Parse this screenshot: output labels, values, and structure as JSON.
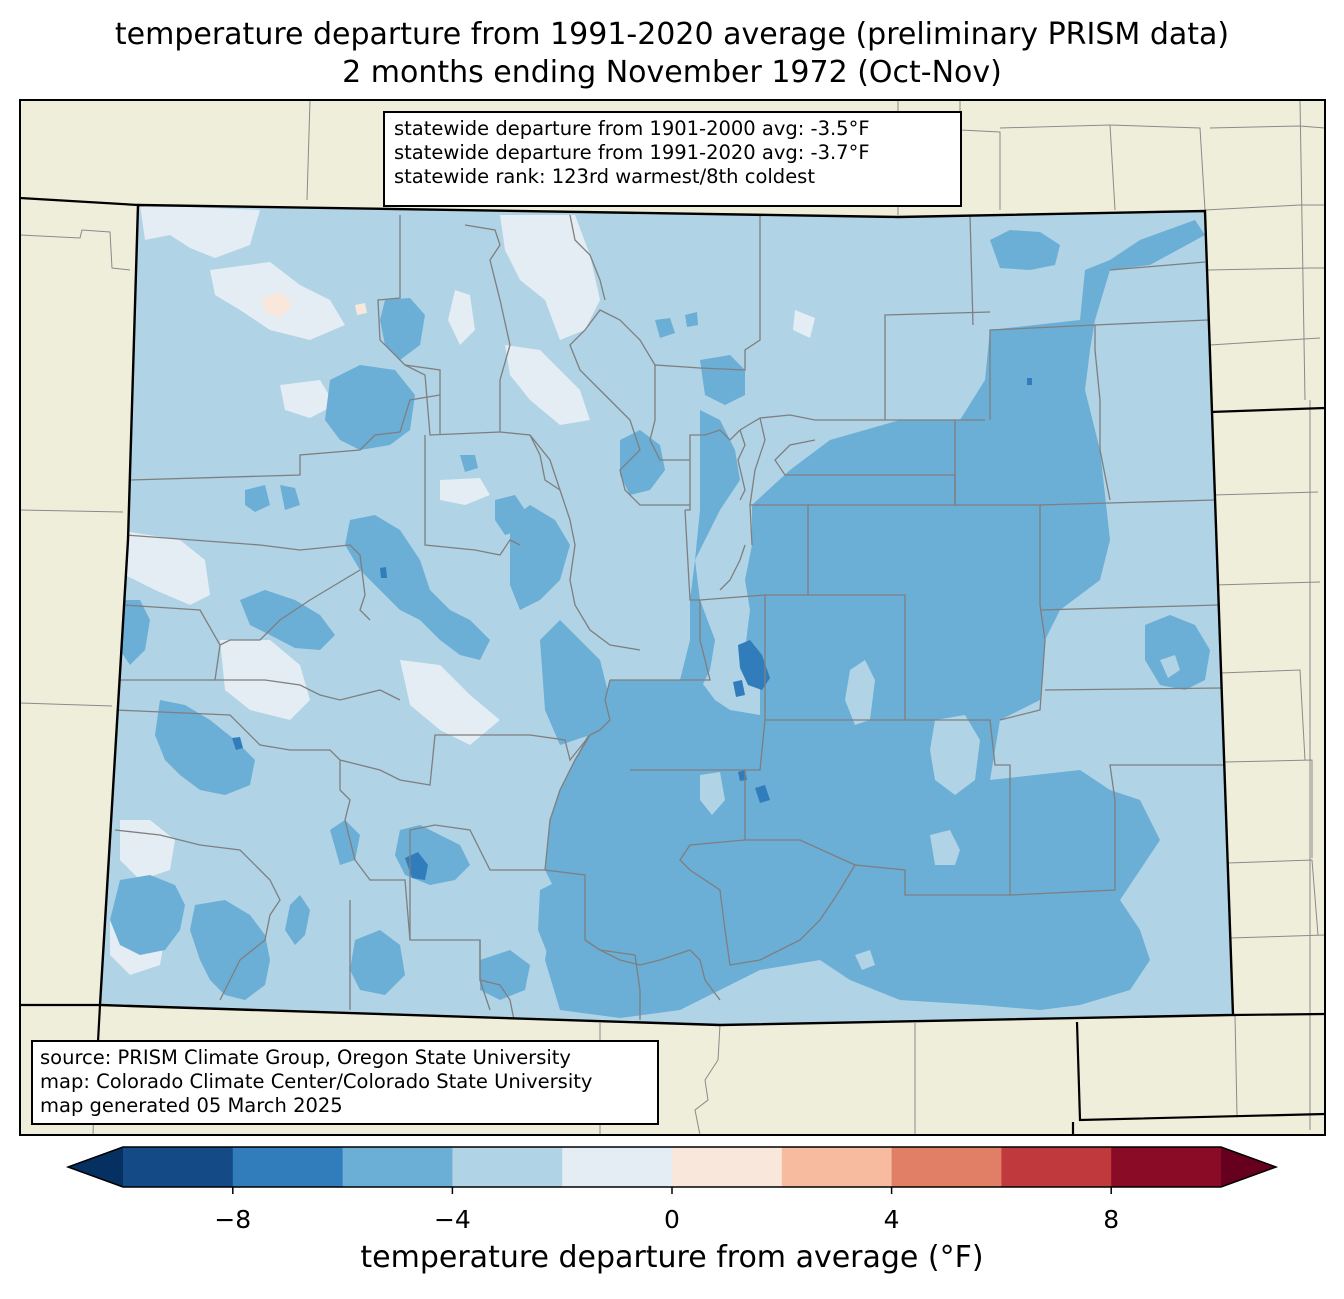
{
  "title": {
    "line1": "temperature departure from 1991-2020 average (preliminary PRISM data)",
    "line2": "2 months ending November 1972 (Oct-Nov)"
  },
  "stats_box": {
    "line1": "statewide departure from 1901-2000 avg: -3.5°F",
    "line2": "statewide departure from 1991-2020 avg: -3.7°F",
    "line3": "statewide rank: 123rd warmest/8th coldest"
  },
  "source_box": {
    "line1": "source: PRISM Climate Group, Oregon State University",
    "line2": "map: Colorado Climate Center/Colorado State University",
    "line3": "map generated 05 March 2025"
  },
  "colorbar": {
    "label": "temperature departure from average (°F)",
    "ticks": [
      "−8",
      "−4",
      "0",
      "4",
      "8"
    ],
    "tick_values": [
      -8,
      -4,
      0,
      4,
      8
    ],
    "bins": [
      -10,
      -8,
      -6,
      -4,
      -2,
      0,
      2,
      4,
      6,
      8,
      10
    ],
    "colors": [
      "#053061",
      "#144b87",
      "#317dbb",
      "#6baed6",
      "#b0d3e6",
      "#e3edf3",
      "#f9e7dc",
      "#f7bba0",
      "#e07e66",
      "#c0393d",
      "#8a0b25",
      "#67001f"
    ]
  },
  "map": {
    "land_color": "#efeedb",
    "state_fill_base": "#b0d3e6",
    "region_colors": {
      "minus_2_to_0": "#e3edf3",
      "minus_2_to_minus_4": "#b0d3e6",
      "minus_4_to_minus_6": "#6baed6",
      "minus_6_to_minus_8": "#317dbb",
      "zero_to_2": "#f9e7dc"
    }
  }
}
